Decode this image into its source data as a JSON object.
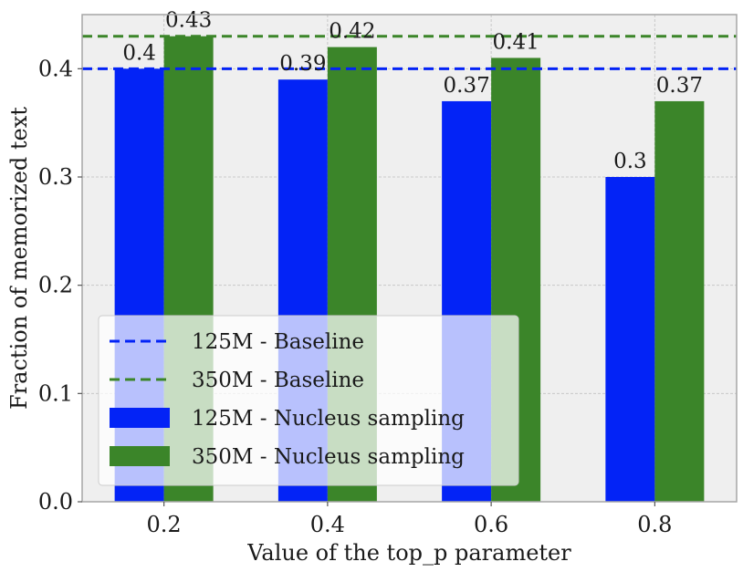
{
  "chart_data": {
    "type": "bar",
    "categories": [
      "0.2",
      "0.4",
      "0.6",
      "0.8"
    ],
    "series": [
      {
        "name": "125M - Nucleus sampling",
        "values": [
          0.4,
          0.39,
          0.37,
          0.3
        ],
        "labels": [
          "0.4",
          "0.39",
          "0.37",
          "0.3"
        ],
        "color": "#0323f6"
      },
      {
        "name": "350M - Nucleus sampling",
        "values": [
          0.43,
          0.42,
          0.41,
          0.37
        ],
        "labels": [
          "0.43",
          "0.42",
          "0.41",
          "0.37"
        ],
        "color": "#3b8529"
      }
    ],
    "baselines": [
      {
        "name": "125M - Baseline",
        "value": 0.4,
        "color": "#0323f6"
      },
      {
        "name": "350M - Baseline",
        "value": 0.43,
        "color": "#3b8529"
      }
    ],
    "xlabel": "Value of the top_p parameter",
    "ylabel": "Fraction of memorized text",
    "ylim": [
      0,
      0.45
    ],
    "yticks": [
      "0.0",
      "0.1",
      "0.2",
      "0.3",
      "0.4"
    ],
    "grid": true,
    "legend_position": "bottom-left",
    "colors": {
      "background": "#efefef",
      "grid": "#c8c8c8",
      "frame": "#a6a6a6"
    }
  }
}
